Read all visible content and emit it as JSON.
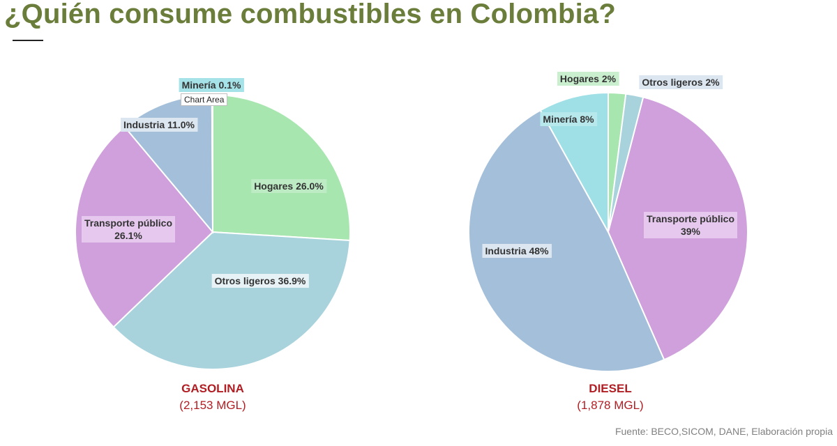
{
  "title": "¿Quién consume combustibles en Colombia?",
  "tooltip": "Chart Area",
  "source": "Fuente: BECO,SICOM, DANE, Elaboración propia",
  "chart_data": [
    {
      "type": "pie",
      "title": "GASOLINA",
      "subtitle": "(2,153 MGL)",
      "slices": [
        {
          "name": "Hogares",
          "value": 26.0,
          "label": "Hogares 26.0%",
          "color": "#a8e6b0"
        },
        {
          "name": "Otros ligeros",
          "value": 36.9,
          "label": "Otros ligeros 36.9%",
          "color": "#a8d3dc"
        },
        {
          "name": "Transporte público",
          "value": 26.1,
          "label": "Transporte público\n26.1%",
          "color": "#cfa0dc"
        },
        {
          "name": "Industria",
          "value": 11.0,
          "label": "Industria 11.0%",
          "color": "#a3bfd9"
        },
        {
          "name": "Minería",
          "value": 0.1,
          "label": "Minería 0.1%",
          "color": "#9fe0e6"
        }
      ]
    },
    {
      "type": "pie",
      "title": "DIESEL",
      "subtitle": "(1,878 MGL)",
      "slices": [
        {
          "name": "Hogares",
          "value": 2,
          "label": "Hogares 2%",
          "color": "#a8e6b0"
        },
        {
          "name": "Otros ligeros",
          "value": 2,
          "label": "Otros ligeros 2%",
          "color": "#a8d3dc"
        },
        {
          "name": "Transporte público",
          "value": 39,
          "label": "Transporte público\n39%",
          "color": "#cfa0dc"
        },
        {
          "name": "Industria",
          "value": 48,
          "label": "Industria 48%",
          "color": "#a3bfd9"
        },
        {
          "name": "Minería",
          "value": 8,
          "label": "Minería 8%",
          "color": "#9fe0e6"
        }
      ]
    }
  ]
}
